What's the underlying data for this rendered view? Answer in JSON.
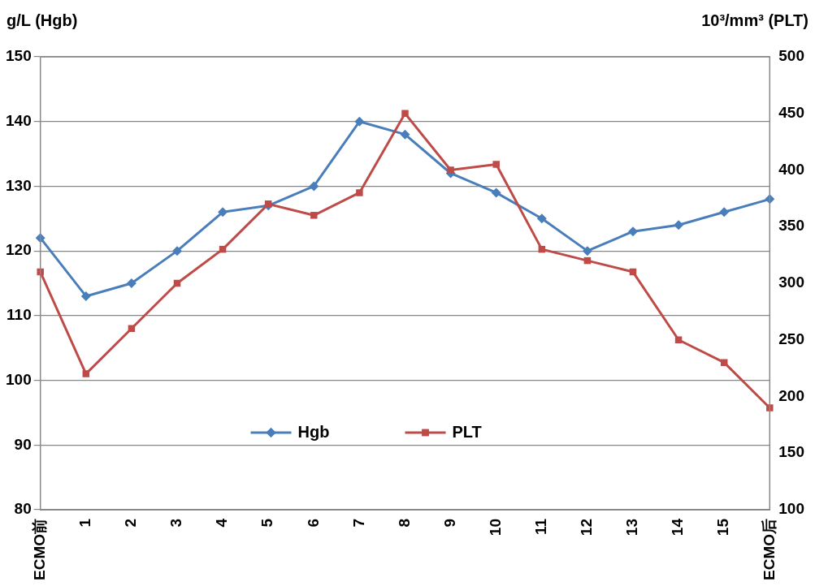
{
  "chart_data": {
    "type": "line",
    "ylabel": "g/L (Hgb)",
    "y2label": "10³/mm³ (PLT)",
    "categories": [
      "ECMO前",
      "1",
      "2",
      "3",
      "4",
      "5",
      "6",
      "7",
      "8",
      "9",
      "10",
      "11",
      "12",
      "13",
      "14",
      "15",
      "ECMO后"
    ],
    "series": [
      {
        "name": "Hgb",
        "color": "#4a7ebb",
        "marker": "diamond",
        "values": [
          122,
          113,
          115,
          120,
          126,
          127,
          130,
          140,
          138,
          132,
          129,
          125,
          120,
          123,
          124,
          126,
          128
        ]
      },
      {
        "name": "PLT",
        "color": "#be4b48",
        "marker": "square",
        "axis": "y2",
        "values": [
          310,
          220,
          260,
          300,
          330,
          370,
          360,
          380,
          450,
          400,
          405,
          330,
          320,
          310,
          250,
          230,
          190
        ]
      }
    ],
    "ylim": [
      80,
      150
    ],
    "yticks": [
      80,
      90,
      100,
      110,
      120,
      130,
      140,
      150
    ],
    "y2lim": [
      100,
      500
    ],
    "y2ticks": [
      100,
      150,
      200,
      250,
      300,
      350,
      400,
      450,
      500
    ],
    "grid": "y",
    "legend": "bottom",
    "line_style": "solid"
  }
}
